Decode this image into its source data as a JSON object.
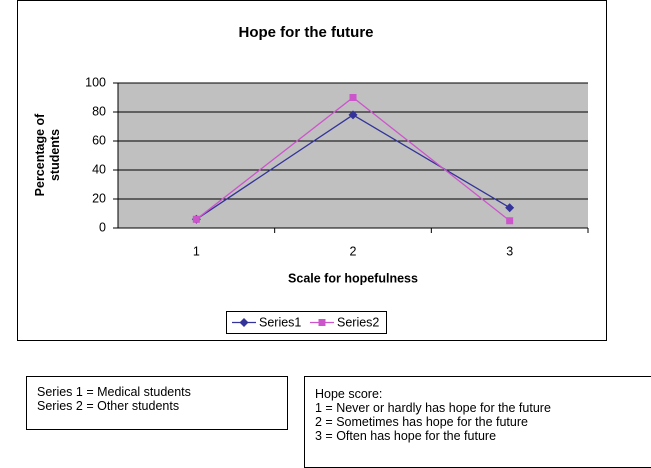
{
  "chart_data": {
    "type": "line",
    "title": "Hope for the future",
    "x_label": "Scale for hopefulness",
    "y_label": "Percentage of students",
    "categories": [
      "1",
      "2",
      "3"
    ],
    "series": [
      {
        "name": "Series1",
        "color": "#333399",
        "marker": "diamond",
        "values": [
          6,
          78,
          14
        ]
      },
      {
        "name": "Series2",
        "color": "#cc55cc",
        "marker": "square",
        "values": [
          6,
          90,
          5
        ]
      }
    ],
    "ylim": [
      0,
      100
    ],
    "yticks": [
      0,
      20,
      40,
      60,
      80,
      100
    ],
    "grid": true,
    "legend": "bottom"
  },
  "notes": {
    "series_key": [
      "Series 1 = Medical students",
      "Series 2 = Other students"
    ],
    "hope_score": [
      "Hope score:",
      "1 = Never or hardly has hope for the future",
      "2 = Sometimes has hope for the future",
      "3 = Often has hope for the future"
    ]
  }
}
